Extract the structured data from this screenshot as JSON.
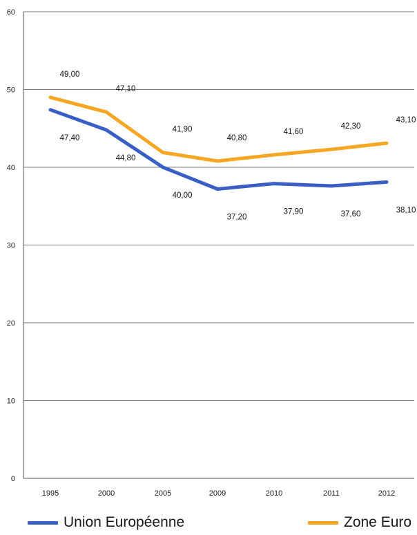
{
  "chart_data": {
    "type": "line",
    "categories": [
      "1995",
      "2000",
      "2005",
      "2009",
      "2010",
      "2011",
      "2012"
    ],
    "series": [
      {
        "name": "Union Européenne",
        "color": "#3a5fc4",
        "values": [
          47.4,
          44.8,
          40.0,
          37.2,
          37.9,
          37.6,
          38.1
        ],
        "labels": [
          "47,40",
          "44,80",
          "40,00",
          "37,20",
          "37,90",
          "37,60",
          "38,10"
        ]
      },
      {
        "name": "Zone Euro",
        "color": "#f5a623",
        "values": [
          49.0,
          47.1,
          41.9,
          40.8,
          41.6,
          42.3,
          43.1
        ],
        "labels": [
          "49,00",
          "47,10",
          "41,90",
          "40,80",
          "41,60",
          "42,30",
          "43,10"
        ]
      }
    ],
    "ylim": [
      0,
      60
    ],
    "yticks": [
      "0",
      "10",
      "20",
      "30",
      "40",
      "50",
      "60"
    ],
    "grid": true,
    "legend_position": "bottom"
  }
}
